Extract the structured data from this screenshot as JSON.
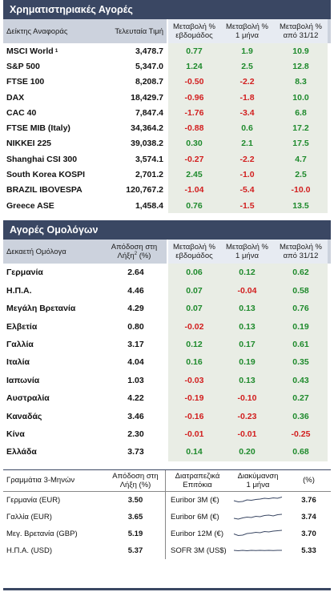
{
  "stock_section": {
    "title": "Χρηματιστηριακές Αγορές",
    "headers": {
      "index": "Δείκτης Αναφοράς",
      "last": "Τελευταία Τιμή",
      "weekly": [
        "Μεταβολή %",
        "εβδομάδος"
      ],
      "monthly": [
        "Μεταβολή %",
        "1 μήνα"
      ],
      "ytd": [
        "Μεταβολή %",
        "από 31/12"
      ]
    },
    "rows": [
      {
        "name": "MSCI World",
        "sup": "1",
        "last": "3,478.7",
        "w": "0.77",
        "m": "1.9",
        "y": "10.9"
      },
      {
        "name": "S&P 500",
        "sup": "",
        "last": "5,347.0",
        "w": "1.24",
        "m": "2.5",
        "y": "12.8"
      },
      {
        "name": "FTSE 100",
        "sup": "",
        "last": "8,208.7",
        "w": "-0.50",
        "m": "-2.2",
        "y": "8.3"
      },
      {
        "name": "DAX",
        "sup": "",
        "last": "18,429.7",
        "w": "-0.96",
        "m": "-1.8",
        "y": "10.0"
      },
      {
        "name": "CAC 40",
        "sup": "",
        "last": "7,847.4",
        "w": "-1.76",
        "m": "-3.4",
        "y": "6.8"
      },
      {
        "name": "FTSE MIB (Italy)",
        "sup": "",
        "last": "34,364.2",
        "w": "-0.88",
        "m": "0.6",
        "y": "17.2"
      },
      {
        "name": "NIKKEI 225",
        "sup": "",
        "last": "39,038.2",
        "w": "0.30",
        "m": "2.1",
        "y": "17.5"
      },
      {
        "name": "Shanghai CSI 300",
        "sup": "",
        "last": "3,574.1",
        "w": "-0.27",
        "m": "-2.2",
        "y": "4.7"
      },
      {
        "name": "South Korea KOSPI",
        "sup": "",
        "last": "2,701.2",
        "w": "2.45",
        "m": "-1.0",
        "y": "2.5"
      },
      {
        "name": "BRAZIL IBOVESPA",
        "sup": "",
        "last": "120,767.2",
        "w": "-1.04",
        "m": "-5.4",
        "y": "-10.0"
      },
      {
        "name": "Greece ASE",
        "sup": "",
        "last": "1,458.4",
        "w": "0.76",
        "m": "-1.5",
        "y": "13.5"
      }
    ]
  },
  "bond_section": {
    "title": "Αγορές Ομολόγων",
    "headers": {
      "name": "Δεκαετή Ομόλογα",
      "yield": [
        "Απόδοση στη",
        "Λήξη",
        "2",
        "(%)"
      ],
      "weekly": [
        "Μεταβολή %",
        "εβδομάδος"
      ],
      "monthly": [
        "Μεταβολή %",
        "1 μήνα"
      ],
      "ytd": [
        "Μεταβολή %",
        "από 31/12"
      ]
    },
    "rows": [
      {
        "name": "Γερμανία",
        "yield": "2.64",
        "w": "0.06",
        "m": "0.12",
        "y": "0.62"
      },
      {
        "name": "Η.Π.Α.",
        "yield": "4.46",
        "w": "0.07",
        "m": "-0.04",
        "y": "0.58"
      },
      {
        "name": "Μεγάλη Βρετανία",
        "yield": "4.29",
        "w": "0.07",
        "m": "0.13",
        "y": "0.76"
      },
      {
        "name": "Ελβετία",
        "yield": "0.80",
        "w": "-0.02",
        "m": "0.13",
        "y": "0.19"
      },
      {
        "name": "Γαλλία",
        "yield": "3.17",
        "w": "0.12",
        "m": "0.17",
        "y": "0.61"
      },
      {
        "name": "Ιταλία",
        "yield": "4.04",
        "w": "0.16",
        "m": "0.19",
        "y": "0.35"
      },
      {
        "name": "Ιαπωνία",
        "yield": "1.03",
        "w": "-0.03",
        "m": "0.13",
        "y": "0.43"
      },
      {
        "name": "Αυστραλία",
        "yield": "4.22",
        "w": "-0.19",
        "m": "-0.10",
        "y": "0.27"
      },
      {
        "name": "Καναδάς",
        "yield": "3.46",
        "w": "-0.16",
        "m": "-0.23",
        "y": "0.36"
      },
      {
        "name": "Κίνα",
        "yield": "2.30",
        "w": "-0.01",
        "m": "-0.01",
        "y": "-0.25"
      },
      {
        "name": "Ελλάδα",
        "yield": "3.73",
        "w": "0.14",
        "m": "0.20",
        "y": "0.68"
      }
    ]
  },
  "tbill_section": {
    "headers": {
      "name": "Γραμμάτια 3-Μηνών",
      "yield": [
        "Απόδοση στη",
        "Λήξη (%)"
      ],
      "rate": [
        "Διατραπεζικά",
        "Επιτόκια"
      ],
      "trend": [
        "Διακύμανση",
        "1 μήνα"
      ],
      "pct": "(%)"
    },
    "rows": [
      {
        "name": "Γερμανία (EUR)",
        "yield": "3.50",
        "rate": "Euribor 3M (€)",
        "value": "3.76",
        "trend": [
          0.4,
          0.25,
          0.3,
          0.5,
          0.45,
          0.55,
          0.6,
          0.7,
          0.65,
          0.75,
          0.7,
          0.85
        ]
      },
      {
        "name": "Γαλλία (EUR)",
        "yield": "3.65",
        "rate": "Euribor 6M (€)",
        "value": "3.74",
        "trend": [
          0.3,
          0.2,
          0.35,
          0.45,
          0.4,
          0.55,
          0.5,
          0.65,
          0.7,
          0.6,
          0.75,
          0.8
        ]
      },
      {
        "name": "Μεγ. Βρετανία (GBP)",
        "yield": "5.19",
        "rate": "Euribor 12M (€)",
        "value": "3.70",
        "trend": [
          0.45,
          0.25,
          0.3,
          0.5,
          0.55,
          0.65,
          0.6,
          0.75,
          0.7,
          0.8,
          0.85,
          0.9
        ]
      },
      {
        "name": "Η.Π.Α. (USD)",
        "yield": "5.37",
        "rate": "SOFR 3M (US$)",
        "value": "5.33",
        "trend": [
          0.5,
          0.45,
          0.5,
          0.45,
          0.5,
          0.48,
          0.5,
          0.47,
          0.5,
          0.48,
          0.5,
          0.5
        ]
      }
    ]
  },
  "colors": {
    "header_bg": "#3a4763",
    "positive": "#1e8a2c",
    "negative": "#d21e1e",
    "spark": "#3a4763"
  }
}
